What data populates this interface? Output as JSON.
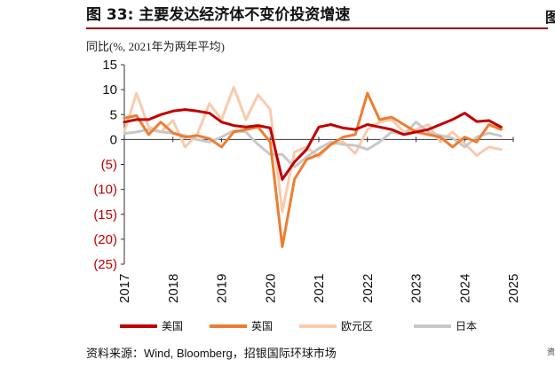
{
  "figure": {
    "title": "图 33: 主要发达经济体不变价投资增速",
    "source": "资料来源：Wind, Bloomberg，招银国际环球市场",
    "right_mark": "图",
    "right_mark2": "资"
  },
  "chart_data": {
    "type": "line",
    "title": "主要发达经济体不变价投资增速",
    "ylabel": "同比(%, 2021年为两年平均)",
    "xlabel": "",
    "ylim": [
      -25,
      15
    ],
    "yticks": [
      15,
      10,
      5,
      0,
      -5,
      -10,
      -15,
      -20,
      -25
    ],
    "ytick_labels": [
      "15",
      "10",
      "5",
      "0",
      "(5)",
      "(10)",
      "(15)",
      "(20)",
      "(25)"
    ],
    "negative_label_color": "#c00000",
    "x_range": [
      2017.0,
      2025.0
    ],
    "xticks": [
      "2017",
      "2018",
      "2019",
      "2020",
      "2021",
      "2022",
      "2023",
      "2024",
      "2025"
    ],
    "grid": false,
    "legend_position": "bottom",
    "series": [
      {
        "name": "美国",
        "color": "#c00000",
        "width": 3,
        "points": [
          [
            2017.0,
            3.5
          ],
          [
            2017.25,
            4.0
          ],
          [
            2017.5,
            4.0
          ],
          [
            2017.75,
            5.0
          ],
          [
            2018.0,
            5.7
          ],
          [
            2018.25,
            6.0
          ],
          [
            2018.5,
            5.7
          ],
          [
            2018.75,
            5.3
          ],
          [
            2019.0,
            3.5
          ],
          [
            2019.25,
            2.8
          ],
          [
            2019.5,
            2.5
          ],
          [
            2019.75,
            2.8
          ],
          [
            2020.0,
            2.3
          ],
          [
            2020.25,
            -8.0
          ],
          [
            2020.5,
            -4.5
          ],
          [
            2020.75,
            -2.0
          ],
          [
            2021.0,
            2.5
          ],
          [
            2021.25,
            3.0
          ],
          [
            2021.5,
            2.3
          ],
          [
            2021.75,
            2.0
          ],
          [
            2022.0,
            3.0
          ],
          [
            2022.25,
            2.5
          ],
          [
            2022.5,
            2.0
          ],
          [
            2022.75,
            1.0
          ],
          [
            2023.0,
            1.5
          ],
          [
            2023.25,
            2.0
          ],
          [
            2023.5,
            3.0
          ],
          [
            2023.75,
            4.0
          ],
          [
            2024.0,
            5.3
          ],
          [
            2024.25,
            3.6
          ],
          [
            2024.5,
            3.8
          ],
          [
            2024.75,
            2.5
          ]
        ]
      },
      {
        "name": "英国",
        "color": "#ed7d31",
        "width": 3,
        "points": [
          [
            2017.0,
            4.3
          ],
          [
            2017.25,
            4.8
          ],
          [
            2017.5,
            1.0
          ],
          [
            2017.75,
            3.5
          ],
          [
            2018.0,
            1.3
          ],
          [
            2018.25,
            0.5
          ],
          [
            2018.5,
            0.8
          ],
          [
            2018.75,
            0.2
          ],
          [
            2019.0,
            -1.5
          ],
          [
            2019.25,
            1.5
          ],
          [
            2019.5,
            2.0
          ],
          [
            2019.75,
            2.5
          ],
          [
            2020.0,
            -0.5
          ],
          [
            2020.25,
            -21.5
          ],
          [
            2020.5,
            -8.0
          ],
          [
            2020.75,
            -4.0
          ],
          [
            2021.0,
            -3.0
          ],
          [
            2021.25,
            -1.0
          ],
          [
            2021.5,
            0.5
          ],
          [
            2021.75,
            1.0
          ],
          [
            2022.0,
            9.3
          ],
          [
            2022.25,
            4.0
          ],
          [
            2022.5,
            4.5
          ],
          [
            2022.75,
            3.0
          ],
          [
            2023.0,
            1.5
          ],
          [
            2023.25,
            1.0
          ],
          [
            2023.5,
            0.5
          ],
          [
            2023.75,
            -1.5
          ],
          [
            2024.0,
            0.5
          ],
          [
            2024.25,
            -0.5
          ],
          [
            2024.5,
            3.0
          ],
          [
            2024.75,
            2.0
          ]
        ]
      },
      {
        "name": "欧元区",
        "color": "#f8cbad",
        "width": 3,
        "points": [
          [
            2017.0,
            1.5
          ],
          [
            2017.25,
            9.3
          ],
          [
            2017.5,
            2.5
          ],
          [
            2017.75,
            1.5
          ],
          [
            2018.0,
            3.8
          ],
          [
            2018.25,
            -1.5
          ],
          [
            2018.5,
            1.0
          ],
          [
            2018.75,
            7.2
          ],
          [
            2019.0,
            4.0
          ],
          [
            2019.25,
            10.5
          ],
          [
            2019.5,
            4.0
          ],
          [
            2019.75,
            9.0
          ],
          [
            2020.0,
            6.0
          ],
          [
            2020.25,
            -14.5
          ],
          [
            2020.5,
            -2.5
          ],
          [
            2020.75,
            -1.5
          ],
          [
            2021.0,
            -3.5
          ],
          [
            2021.25,
            -1.0
          ],
          [
            2021.5,
            -0.5
          ],
          [
            2021.75,
            -2.8
          ],
          [
            2022.0,
            2.0
          ],
          [
            2022.25,
            3.5
          ],
          [
            2022.5,
            4.0
          ],
          [
            2022.75,
            1.5
          ],
          [
            2023.0,
            2.0
          ],
          [
            2023.25,
            3.0
          ],
          [
            2023.5,
            -0.5
          ],
          [
            2023.75,
            1.5
          ],
          [
            2024.0,
            -0.8
          ],
          [
            2024.25,
            -3.2
          ],
          [
            2024.5,
            -1.5
          ],
          [
            2024.75,
            -2.0
          ]
        ]
      },
      {
        "name": "日本",
        "color": "#c8c8c8",
        "width": 3,
        "points": [
          [
            2017.0,
            1.2
          ],
          [
            2017.25,
            1.5
          ],
          [
            2017.5,
            2.0
          ],
          [
            2017.75,
            1.5
          ],
          [
            2018.0,
            1.3
          ],
          [
            2018.25,
            0.8
          ],
          [
            2018.5,
            0.0
          ],
          [
            2018.75,
            -0.5
          ],
          [
            2019.0,
            0.5
          ],
          [
            2019.25,
            1.8
          ],
          [
            2019.5,
            1.5
          ],
          [
            2019.75,
            -1.0
          ],
          [
            2020.0,
            -3.0
          ],
          [
            2020.25,
            -3.0
          ],
          [
            2020.5,
            -5.5
          ],
          [
            2020.75,
            -3.5
          ],
          [
            2021.0,
            -1.8
          ],
          [
            2021.25,
            -0.5
          ],
          [
            2021.5,
            -1.0
          ],
          [
            2021.75,
            -1.2
          ],
          [
            2022.0,
            -2.0
          ],
          [
            2022.25,
            -0.5
          ],
          [
            2022.5,
            1.5
          ],
          [
            2022.75,
            1.0
          ],
          [
            2023.0,
            3.5
          ],
          [
            2023.25,
            1.5
          ],
          [
            2023.5,
            0.8
          ],
          [
            2023.75,
            0.3
          ],
          [
            2024.0,
            -1.5
          ],
          [
            2024.25,
            0.5
          ],
          [
            2024.5,
            1.3
          ],
          [
            2024.75,
            0.7
          ]
        ]
      }
    ]
  }
}
